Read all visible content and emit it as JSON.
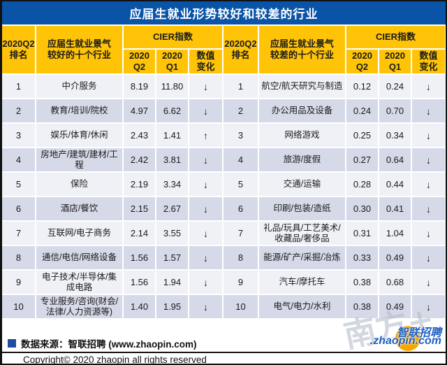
{
  "title": "应届生就业形势较好和较差的行业",
  "header": {
    "rank": "2020Q2\n排名",
    "better_industry": "应届生就业景气\n较好的十个行业",
    "worse_industry": "应届生就业景气\n较差的十个行业",
    "cier_group": "CIER指数",
    "q2": "2020\nQ2",
    "q1": "2020\nQ1",
    "change": "数值\n变化"
  },
  "chart_data": {
    "type": "table",
    "title": "应届生就业形势较好和较差的行业",
    "sections": [
      {
        "name": "应届生就业景气较好的十个行业",
        "columns": [
          "2020Q2排名",
          "行业",
          "CIER指数 2020Q2",
          "CIER指数 2020Q1",
          "数值变化"
        ],
        "rows": [
          [
            "1",
            "中介服务",
            "8.19",
            "11.80",
            "↓"
          ],
          [
            "2",
            "教育/培训/院校",
            "4.97",
            "6.62",
            "↓"
          ],
          [
            "3",
            "娱乐/体育/休闲",
            "2.43",
            "1.41",
            "↑"
          ],
          [
            "4",
            "房地产/建筑/建材/工程",
            "2.42",
            "3.81",
            "↓"
          ],
          [
            "5",
            "保险",
            "2.19",
            "3.34",
            "↓"
          ],
          [
            "6",
            "酒店/餐饮",
            "2.15",
            "2.67",
            "↓"
          ],
          [
            "7",
            "互联网/电子商务",
            "2.14",
            "3.55",
            "↓"
          ],
          [
            "8",
            "通信/电信/网络设备",
            "1.56",
            "1.57",
            "↓"
          ],
          [
            "9",
            "电子技术/半导体/集成电路",
            "1.56",
            "1.94",
            "↓"
          ],
          [
            "10",
            "专业服务/咨询(财会/法律/人力资源等)",
            "1.40",
            "1.95",
            "↓"
          ]
        ]
      },
      {
        "name": "应届生就业景气较差的十个行业",
        "columns": [
          "2020Q2排名",
          "行业",
          "CIER指数 2020Q2",
          "CIER指数 2020Q1",
          "数值变化"
        ],
        "rows": [
          [
            "1",
            "航空/航天研究与制造",
            "0.12",
            "0.24",
            "↓"
          ],
          [
            "2",
            "办公用品及设备",
            "0.24",
            "0.70",
            "↓"
          ],
          [
            "3",
            "网络游戏",
            "0.25",
            "0.34",
            "↓"
          ],
          [
            "4",
            "旅游/度假",
            "0.27",
            "0.64",
            "↓"
          ],
          [
            "5",
            "交通/运输",
            "0.28",
            "0.44",
            "↓"
          ],
          [
            "6",
            "印刷/包装/造纸",
            "0.30",
            "0.41",
            "↓"
          ],
          [
            "7",
            "礼品/玩具/工艺美术/收藏品/奢侈品",
            "0.31",
            "1.04",
            "↓"
          ],
          [
            "8",
            "能源/矿产/采掘/冶炼",
            "0.33",
            "0.49",
            "↓"
          ],
          [
            "9",
            "汽车/摩托车",
            "0.38",
            "0.68",
            "↓"
          ],
          [
            "10",
            "电气/电力/水利",
            "0.38",
            "0.49",
            "↓"
          ]
        ]
      }
    ]
  },
  "footer": {
    "source": "数据来源：智联招聘 (www.zhaopin.com)",
    "copyright": "Copyright© 2020 zhaopin all rights reserved"
  },
  "branding": {
    "watermark": "南方+",
    "logo_name": "智联招聘",
    "logo_domain": ".zhaopin.com"
  },
  "colors": {
    "title_bar": "#0A54A8",
    "header_gold": "#FFC408",
    "row_light": "#F0F1F7",
    "row_dark": "#D6D9E8",
    "source_bullet": "#1F4E9C",
    "logo_blue": "#1E5FC2",
    "logo_orange": "#F6A800"
  }
}
